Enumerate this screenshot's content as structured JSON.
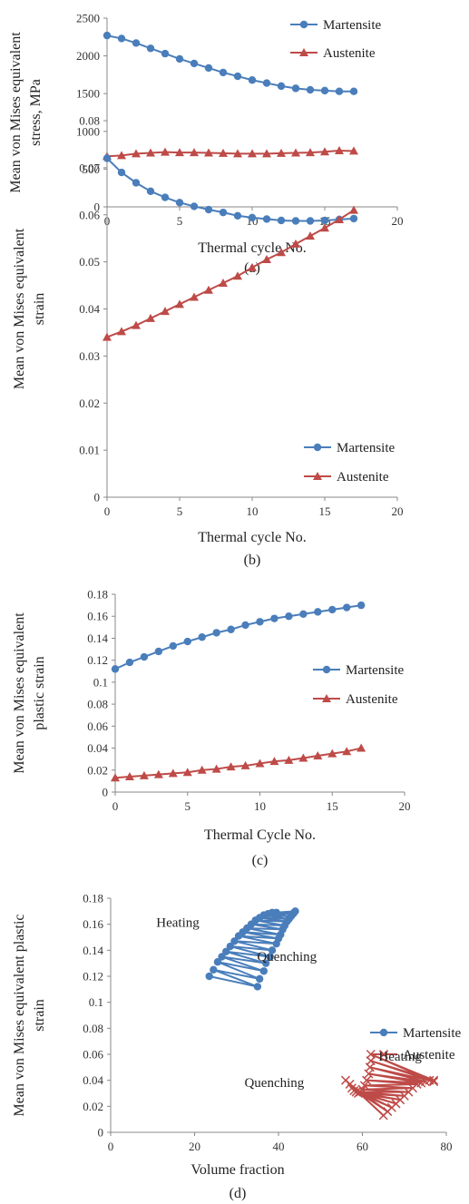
{
  "colors": {
    "martensite": "#4a7ebb",
    "austenite": "#be4b48",
    "axis": "#888888"
  },
  "chart_data": [
    {
      "type": "line",
      "caption": "(a)",
      "xlabel": "Thermal cycle No.",
      "ylabel_lines": [
        "Mean von Mises equivalent",
        "stress, MPa"
      ],
      "xlim": [
        0,
        20
      ],
      "ylim": [
        0,
        2500
      ],
      "xticks": [
        0,
        5,
        10,
        15,
        20
      ],
      "yticks": [
        0,
        500,
        1000,
        1500,
        2000,
        2500
      ],
      "ytick_labels": [
        "0",
        "500",
        "1000",
        "1500",
        "2000",
        "2500"
      ],
      "legend_position": "top-right",
      "x": [
        0,
        1,
        2,
        3,
        4,
        5,
        6,
        7,
        8,
        9,
        10,
        11,
        12,
        13,
        14,
        15,
        16,
        17
      ],
      "series": [
        {
          "name": "Martensite",
          "marker": "circle",
          "values": [
            2270,
            2230,
            2170,
            2100,
            2030,
            1960,
            1900,
            1840,
            1780,
            1730,
            1680,
            1640,
            1600,
            1570,
            1550,
            1540,
            1530,
            1530
          ]
        },
        {
          "name": "Austenite",
          "marker": "triangle",
          "values": [
            670,
            680,
            705,
            715,
            725,
            720,
            720,
            715,
            710,
            705,
            705,
            705,
            710,
            715,
            720,
            730,
            745,
            740
          ]
        }
      ]
    },
    {
      "type": "line",
      "caption": "(b)",
      "xlabel": "Thermal cycle No.",
      "ylabel_lines": [
        "Mean von Mises equivalent",
        "strain"
      ],
      "xlim": [
        0,
        20
      ],
      "ylim": [
        0,
        0.08
      ],
      "xticks": [
        0,
        5,
        10,
        15,
        20
      ],
      "yticks": [
        0,
        0.01,
        0.02,
        0.03,
        0.04,
        0.05,
        0.06,
        0.07,
        0.08
      ],
      "ytick_labels": [
        "0",
        "0.01",
        "0.02",
        "0.03",
        "0.04",
        "0.05",
        "0.06",
        "0.07",
        "0.08"
      ],
      "legend_position": "bottom-right",
      "x": [
        0,
        1,
        2,
        3,
        4,
        5,
        6,
        7,
        8,
        9,
        10,
        11,
        12,
        13,
        14,
        15,
        16,
        17
      ],
      "series": [
        {
          "name": "Martensite",
          "marker": "circle",
          "values": [
            0.072,
            0.069,
            0.0668,
            0.065,
            0.0637,
            0.0626,
            0.0618,
            0.0611,
            0.0605,
            0.0598,
            0.0594,
            0.0591,
            0.0588,
            0.0587,
            0.0587,
            0.0588,
            0.059,
            0.0592
          ]
        },
        {
          "name": "Austenite",
          "marker": "triangle",
          "values": [
            0.034,
            0.0352,
            0.0365,
            0.038,
            0.0395,
            0.041,
            0.0425,
            0.044,
            0.0455,
            0.047,
            0.0488,
            0.0505,
            0.052,
            0.0538,
            0.0555,
            0.0572,
            0.059,
            0.061
          ]
        }
      ]
    },
    {
      "type": "line",
      "caption": "(c)",
      "xlabel": "Thermal Cycle No.",
      "ylabel_lines": [
        "Mean von Mises equivalent",
        "plastic strain"
      ],
      "xlim": [
        0,
        20
      ],
      "ylim": [
        0,
        0.18
      ],
      "xticks": [
        0,
        5,
        10,
        15,
        20
      ],
      "yticks": [
        0,
        0.02,
        0.04,
        0.06,
        0.08,
        0.1,
        0.12,
        0.14,
        0.16,
        0.18
      ],
      "ytick_labels": [
        "0",
        "0.02",
        "0.04",
        "0.06",
        "0.08",
        "0.1",
        "0.12",
        "0.14",
        "0.16",
        "0.18"
      ],
      "legend_position": "middle-right",
      "x": [
        0,
        1,
        2,
        3,
        4,
        5,
        6,
        7,
        8,
        9,
        10,
        11,
        12,
        13,
        14,
        15,
        16,
        17
      ],
      "series": [
        {
          "name": "Martensite",
          "marker": "circle",
          "values": [
            0.112,
            0.118,
            0.123,
            0.128,
            0.133,
            0.137,
            0.141,
            0.145,
            0.148,
            0.152,
            0.155,
            0.158,
            0.16,
            0.162,
            0.164,
            0.166,
            0.168,
            0.17
          ]
        },
        {
          "name": "Austenite",
          "marker": "triangle",
          "values": [
            0.013,
            0.014,
            0.015,
            0.016,
            0.017,
            0.018,
            0.02,
            0.021,
            0.023,
            0.024,
            0.026,
            0.028,
            0.029,
            0.031,
            0.033,
            0.035,
            0.037,
            0.04
          ]
        }
      ]
    },
    {
      "type": "scatter",
      "caption": "(d)",
      "xlabel": "Volume fraction",
      "ylabel_lines": [
        "Mean von Mises equivalent plastic",
        "strain"
      ],
      "xlim": [
        0,
        80
      ],
      "ylim": [
        0,
        0.18
      ],
      "xticks": [
        0,
        20,
        40,
        60,
        80
      ],
      "yticks": [
        0,
        0.02,
        0.04,
        0.06,
        0.08,
        0.1,
        0.12,
        0.14,
        0.16,
        0.18
      ],
      "ytick_labels": [
        "0",
        "0.02",
        "0.04",
        "0.06",
        "0.08",
        "0.1",
        "0.12",
        "0.14",
        "0.16",
        "0.18"
      ],
      "legend_position": "middle-right",
      "annotations": [
        {
          "text": "Heating",
          "x": 16,
          "y": 0.158
        },
        {
          "text": "Quenching",
          "x": 42,
          "y": 0.132
        },
        {
          "text": "Heating",
          "x": 69,
          "y": 0.055
        },
        {
          "text": "Quenching",
          "x": 39,
          "y": 0.035
        }
      ],
      "series": [
        {
          "name": "Martensite",
          "marker": "circle",
          "points": [
            [
              23.5,
              0.12
            ],
            [
              35,
              0.112
            ],
            [
              24.5,
              0.125
            ],
            [
              35.5,
              0.118
            ],
            [
              25.5,
              0.131
            ],
            [
              36.5,
              0.124
            ],
            [
              26.5,
              0.135
            ],
            [
              37,
              0.13
            ],
            [
              27.5,
              0.139
            ],
            [
              38,
              0.135
            ],
            [
              28.5,
              0.143
            ],
            [
              38.5,
              0.14
            ],
            [
              29.5,
              0.147
            ],
            [
              39.5,
              0.145
            ],
            [
              30.5,
              0.151
            ],
            [
              40,
              0.149
            ],
            [
              31.5,
              0.154
            ],
            [
              40.5,
              0.152
            ],
            [
              32.5,
              0.157
            ],
            [
              41,
              0.156
            ],
            [
              33.5,
              0.16
            ],
            [
              41.5,
              0.159
            ],
            [
              34.5,
              0.163
            ],
            [
              42,
              0.162
            ],
            [
              35.5,
              0.165
            ],
            [
              42.5,
              0.164
            ],
            [
              36.5,
              0.167
            ],
            [
              43,
              0.166
            ],
            [
              37.5,
              0.168
            ],
            [
              43.5,
              0.168
            ],
            [
              38.5,
              0.169
            ],
            [
              43.7,
              0.169
            ],
            [
              39.5,
              0.169
            ],
            [
              44,
              0.17
            ]
          ]
        },
        {
          "name": "Austenite",
          "marker": "x",
          "points": [
            [
              56,
              0.04
            ],
            [
              65,
              0.013
            ],
            [
              57,
              0.037
            ],
            [
              66,
              0.016
            ],
            [
              57.5,
              0.034
            ],
            [
              67,
              0.019
            ],
            [
              58,
              0.032
            ],
            [
              68,
              0.022
            ],
            [
              58.5,
              0.031
            ],
            [
              69,
              0.025
            ],
            [
              59,
              0.03
            ],
            [
              70,
              0.028
            ],
            [
              59.5,
              0.031
            ],
            [
              71,
              0.031
            ],
            [
              60,
              0.033
            ],
            [
              72,
              0.034
            ],
            [
              60.5,
              0.036
            ],
            [
              73,
              0.037
            ],
            [
              61,
              0.04
            ],
            [
              74,
              0.038
            ],
            [
              61.5,
              0.045
            ],
            [
              75,
              0.039
            ],
            [
              61.8,
              0.05
            ],
            [
              76,
              0.04
            ],
            [
              62,
              0.055
            ],
            [
              77,
              0.04
            ],
            [
              62,
              0.06
            ],
            [
              77,
              0.039
            ]
          ]
        }
      ]
    }
  ]
}
